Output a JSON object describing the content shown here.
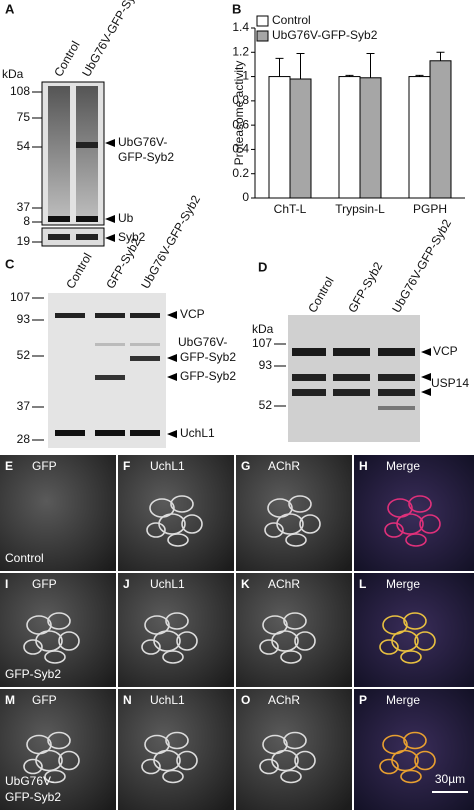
{
  "panels": {
    "A": {
      "label": "A",
      "lanes": [
        "Control",
        "UbG76V-GFP-Syb2"
      ],
      "kda": "kDa",
      "markers": [
        108,
        75,
        54,
        37,
        8,
        19
      ],
      "bands": [
        "UbG76V-",
        "GFP-Syb2",
        "Ub",
        "Syb2"
      ]
    },
    "C": {
      "label": "C",
      "lanes": [
        "Control",
        "GFP-Syb2",
        "UbG76V-GFP-Syb2"
      ],
      "markers": [
        107,
        93,
        52,
        37,
        28
      ],
      "bands": [
        "VCP",
        "UbG76V-",
        "GFP-Syb2",
        "GFP-Syb2",
        "UchL1"
      ]
    },
    "D": {
      "label": "D",
      "lanes": [
        "Control",
        "GFP-Syb2",
        "UbG76V-GFP-Syb2"
      ],
      "kda": "kDa",
      "markers": [
        107,
        93,
        52
      ],
      "bands": [
        "VCP",
        "USP14"
      ]
    },
    "images": {
      "rows": [
        {
          "caption": [
            "Control"
          ],
          "tiles": [
            {
              "letter": "E",
              "stain": "GFP"
            },
            {
              "letter": "F",
              "stain": "UchL1"
            },
            {
              "letter": "G",
              "stain": "AChR"
            },
            {
              "letter": "H",
              "stain": "Merge"
            }
          ]
        },
        {
          "caption": [
            "GFP-Syb2"
          ],
          "tiles": [
            {
              "letter": "I",
              "stain": "GFP"
            },
            {
              "letter": "J",
              "stain": "UchL1"
            },
            {
              "letter": "K",
              "stain": "AChR"
            },
            {
              "letter": "L",
              "stain": "Merge"
            }
          ]
        },
        {
          "caption": [
            "UbG76V-",
            "GFP-Syb2"
          ],
          "tiles": [
            {
              "letter": "M",
              "stain": "GFP"
            },
            {
              "letter": "N",
              "stain": "UchL1"
            },
            {
              "letter": "O",
              "stain": "AChR"
            },
            {
              "letter": "P",
              "stain": "Merge"
            }
          ]
        }
      ],
      "scale_bar": "30µm"
    }
  },
  "chart_data": {
    "type": "bar",
    "label": "B",
    "y_label": "Proteasome activity",
    "categories": [
      "ChT-L",
      "Trypsin-L",
      "PGPH"
    ],
    "series": [
      {
        "name": "Control",
        "color": "#ffffff",
        "values": [
          1,
          1,
          1
        ],
        "errors": [
          0.15,
          0.01,
          0.01
        ]
      },
      {
        "name": "UbG76V-GFP-Syb2",
        "color": "#a6a6a6",
        "values": [
          0.98,
          0.99,
          1.13
        ],
        "errors": [
          0.21,
          0.2,
          0.07
        ]
      }
    ],
    "ylim": [
      0,
      1.4
    ],
    "yticks": [
      0,
      0.2,
      0.4,
      0.6,
      0.8,
      1,
      1.2,
      1.4
    ],
    "legend": "top-left"
  }
}
